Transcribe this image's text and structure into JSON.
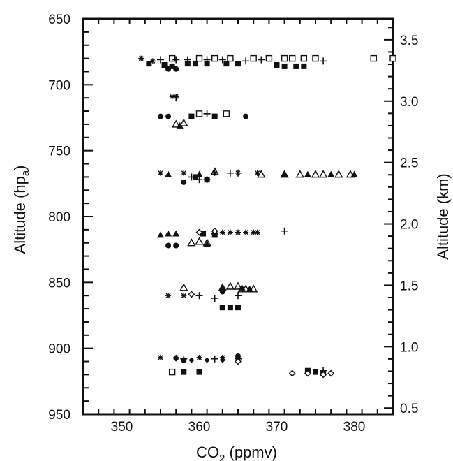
{
  "chart_data": {
    "type": "scatter",
    "title": "",
    "xlabel_main": "CO",
    "xlabel_sub": "2",
    "xlabel_unit": " (ppmv)",
    "ylabel": "Altitude (hp",
    "ylabel_sub": "a",
    "ylabel_end": ")",
    "ylabel_right": "Altitude (km)",
    "xlim": [
      345,
      385
    ],
    "ylim": [
      950,
      650
    ],
    "y2lim": [
      0.45,
      3.67
    ],
    "grid": false,
    "xticks": [
      350,
      360,
      370,
      380
    ],
    "yticks": [
      650,
      700,
      750,
      800,
      850,
      900,
      950
    ],
    "y2ticks": [
      0.5,
      1.0,
      1.5,
      2.0,
      2.5,
      3.0,
      3.5
    ],
    "y2tick_labels": [
      "0.5",
      "1.0",
      "1.5",
      "2.0",
      "2.5",
      "3.0",
      "3.5"
    ],
    "series": [
      {
        "marker": "square",
        "points": [
          [
            356.5,
            680
          ],
          [
            360,
            680
          ],
          [
            362,
            680
          ],
          [
            364,
            680
          ],
          [
            367,
            680
          ],
          [
            369,
            680
          ],
          [
            371,
            680
          ],
          [
            372,
            680
          ],
          [
            373.5,
            680
          ],
          [
            375,
            680
          ],
          [
            382.5,
            680
          ],
          [
            385,
            680
          ],
          [
            360,
            722
          ],
          [
            363.5,
            722
          ],
          [
            356.5,
            918
          ]
        ]
      },
      {
        "marker": "filled-square",
        "points": [
          [
            353.5,
            684
          ],
          [
            355.5,
            685
          ],
          [
            356.5,
            686
          ],
          [
            358.5,
            684
          ],
          [
            359.5,
            684
          ],
          [
            361,
            684
          ],
          [
            363.5,
            684
          ],
          [
            365,
            684
          ],
          [
            370,
            685
          ],
          [
            371,
            686
          ],
          [
            372.5,
            686
          ],
          [
            373.5,
            686
          ],
          [
            359,
            724
          ],
          [
            362,
            724
          ],
          [
            359.5,
            770
          ],
          [
            361,
            772
          ],
          [
            360.5,
            813
          ],
          [
            362,
            814
          ],
          [
            363,
            869
          ],
          [
            364,
            869
          ],
          [
            365,
            869
          ],
          [
            358,
            918
          ],
          [
            360,
            918
          ],
          [
            374,
            917
          ],
          [
            375,
            918
          ],
          [
            376,
            919
          ]
        ]
      },
      {
        "marker": "plus",
        "points": [
          [
            355,
            681
          ],
          [
            357,
            681
          ],
          [
            358.5,
            681
          ],
          [
            361,
            681
          ],
          [
            363,
            681
          ],
          [
            366,
            682
          ],
          [
            368,
            681
          ],
          [
            376,
            682
          ],
          [
            357,
            710
          ],
          [
            361,
            722
          ],
          [
            364,
            767
          ],
          [
            365,
            767
          ],
          [
            359,
            770
          ],
          [
            360,
            772
          ],
          [
            361,
            772
          ],
          [
            371,
            811
          ],
          [
            362,
            813
          ],
          [
            360,
            860
          ],
          [
            362,
            862
          ],
          [
            365,
            860
          ],
          [
            358,
            908
          ],
          [
            362,
            908
          ],
          [
            365,
            908
          ],
          [
            376,
            917
          ]
        ]
      },
      {
        "marker": "filled-circle",
        "points": [
          [
            356,
            688
          ],
          [
            357,
            688
          ],
          [
            355,
            724
          ],
          [
            356,
            724
          ],
          [
            366,
            724
          ],
          [
            358,
            774
          ],
          [
            356,
            822
          ],
          [
            357,
            822
          ],
          [
            363,
            857
          ],
          [
            365,
            906
          ],
          [
            358,
            909
          ]
        ]
      },
      {
        "marker": "triangle",
        "points": [
          [
            357,
            730
          ],
          [
            358,
            729
          ],
          [
            362,
            766
          ],
          [
            368,
            768
          ],
          [
            371,
            768
          ],
          [
            373,
            768
          ],
          [
            375,
            768
          ],
          [
            376,
            768
          ],
          [
            378,
            768
          ],
          [
            379.5,
            768
          ],
          [
            359,
            820
          ],
          [
            360,
            819
          ],
          [
            361,
            820
          ],
          [
            358,
            854
          ],
          [
            363,
            854
          ],
          [
            364,
            853
          ],
          [
            365,
            853
          ],
          [
            365.5,
            855
          ],
          [
            366,
            855
          ],
          [
            367,
            855
          ]
        ]
      },
      {
        "marker": "filled-triangle",
        "points": [
          [
            357.5,
            731
          ],
          [
            356,
            768
          ],
          [
            360,
            768
          ],
          [
            371,
            768
          ],
          [
            374,
            768
          ],
          [
            377,
            768
          ],
          [
            380,
            768
          ],
          [
            355,
            814
          ],
          [
            356,
            813
          ],
          [
            357,
            813
          ],
          [
            361,
            821
          ],
          [
            363,
            854
          ],
          [
            365.5,
            854
          ],
          [
            366.5,
            855
          ]
        ]
      },
      {
        "marker": "star",
        "points": [
          [
            352.5,
            680
          ],
          [
            354,
            682
          ],
          [
            357,
            709
          ],
          [
            356.5,
            709
          ],
          [
            355,
            767
          ],
          [
            358,
            767
          ],
          [
            362,
            767
          ],
          [
            365,
            767
          ],
          [
            367.5,
            767
          ],
          [
            363,
            812
          ],
          [
            364,
            812
          ],
          [
            365,
            812
          ],
          [
            366,
            812
          ],
          [
            367,
            812
          ],
          [
            367.5,
            812
          ],
          [
            356,
            860
          ],
          [
            358,
            860
          ],
          [
            355,
            907
          ],
          [
            357,
            907
          ],
          [
            360,
            907
          ],
          [
            363,
            907
          ]
        ]
      },
      {
        "marker": "filled-diamond",
        "points": [
          [
            357,
            908
          ],
          [
            359,
            909
          ],
          [
            361,
            909
          ],
          [
            363,
            909
          ],
          [
            365,
            909
          ]
        ]
      },
      {
        "marker": "diamond",
        "points": [
          [
            362,
            811
          ],
          [
            360,
            812
          ],
          [
            359,
            859
          ],
          [
            365,
            910
          ],
          [
            372,
            919
          ],
          [
            374,
            919
          ],
          [
            376,
            920
          ],
          [
            377,
            919
          ]
        ]
      }
    ]
  }
}
